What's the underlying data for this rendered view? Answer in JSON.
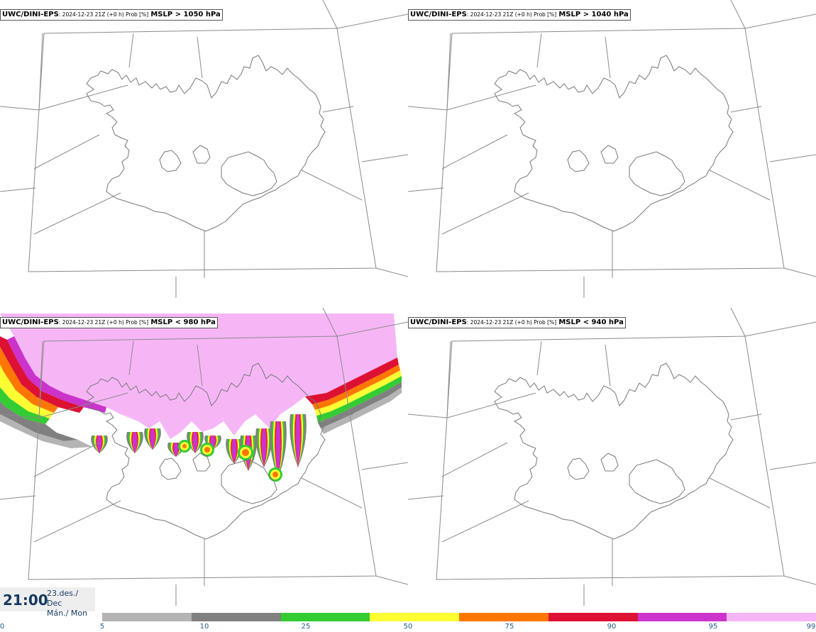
{
  "panels": [
    {
      "model": "UWC/DINI-EPS",
      "meta": ": 2024-12-23 21Z (+0 h) Prob [%]",
      "condition": "MSLP > 1050 hPa",
      "filled": false
    },
    {
      "model": "UWC/DINI-EPS",
      "meta": ": 2024-12-23 21Z (+0 h) Prob [%]",
      "condition": "MSLP > 1040 hPa",
      "filled": false
    },
    {
      "model": "UWC/DINI-EPS",
      "meta": ": 2024-12-23 21Z (+0 h) Prob [%]",
      "condition": "MSLP < 980 hPa",
      "filled": true
    },
    {
      "model": "UWC/DINI-EPS",
      "meta": ": 2024-12-23 21Z (+0 h) Prob [%]",
      "condition": "MSLP < 940 hPa",
      "filled": false
    }
  ],
  "time": {
    "hour": "21:00",
    "date_line": "23.des./ Dec",
    "day_line": "Mán./ Mon"
  },
  "colorbar": {
    "ticks": [
      "0",
      "5",
      "10",
      "25",
      "50",
      "75",
      "90",
      "95",
      "99"
    ],
    "colors": [
      "#ffffff",
      "#b4b4b4",
      "#808080",
      "#33cc33",
      "#ffff33",
      "#ff7700",
      "#dd1133",
      "#cc33cc",
      "#f6b6f6"
    ]
  }
}
